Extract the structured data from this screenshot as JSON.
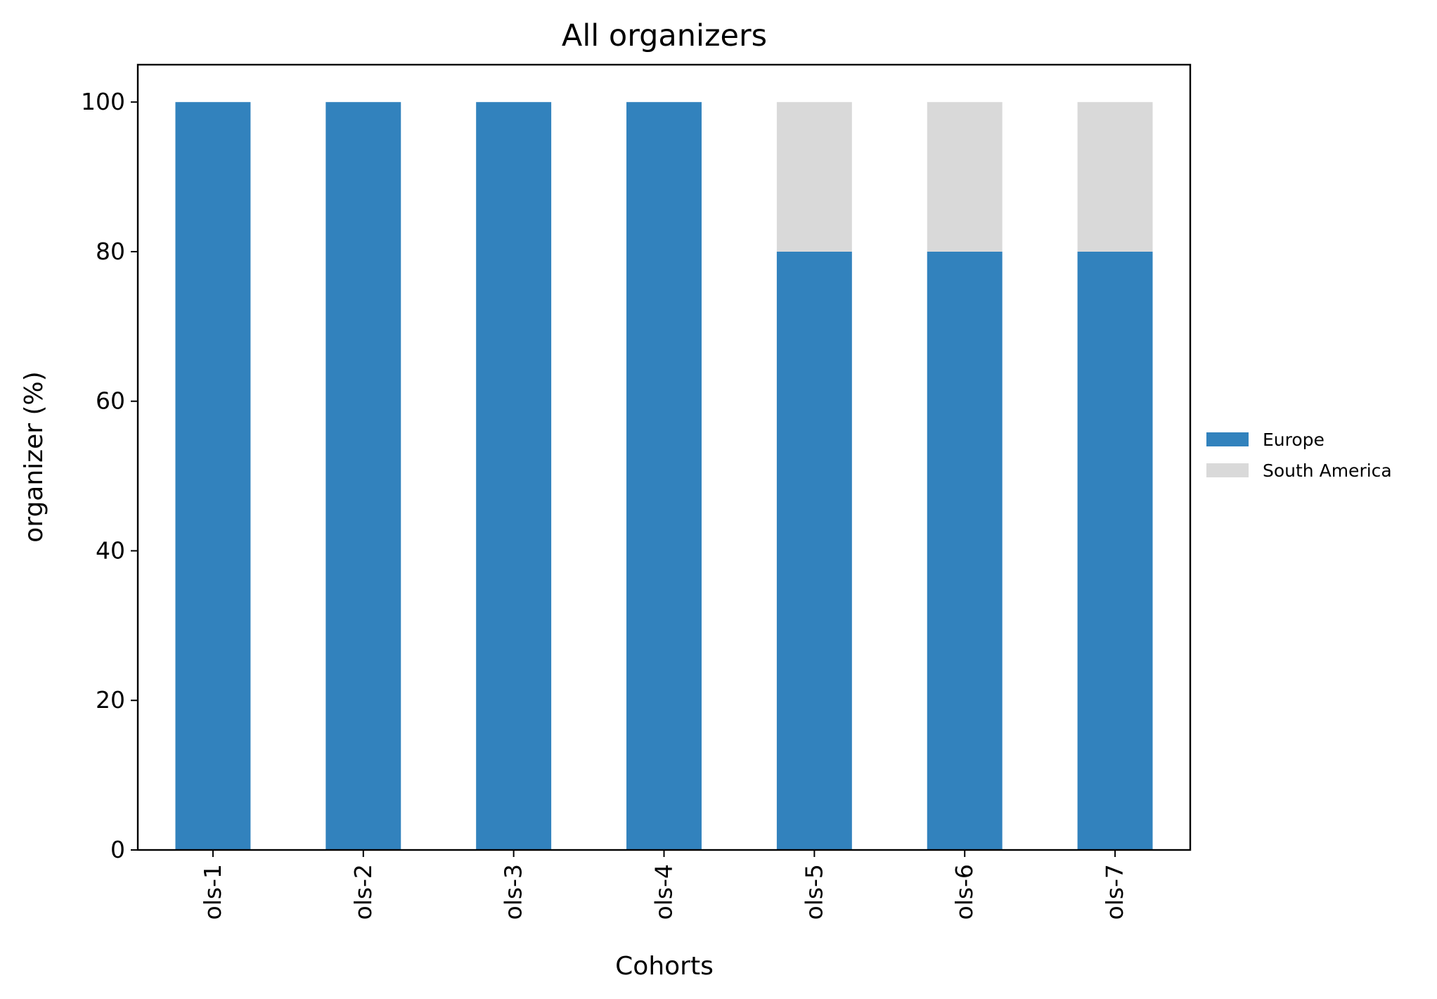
{
  "chart_data": {
    "type": "bar",
    "stacked": true,
    "title": "All organizers",
    "xlabel": "Cohorts",
    "ylabel": "organizer (%)",
    "categories": [
      "ols-1",
      "ols-2",
      "ols-3",
      "ols-4",
      "ols-5",
      "ols-6",
      "ols-7"
    ],
    "series": [
      {
        "name": "Europe",
        "color": "#3282bd",
        "values": [
          100,
          100,
          100,
          100,
          80,
          80,
          80
        ]
      },
      {
        "name": "South America",
        "color": "#d9d9d9",
        "values": [
          0,
          0,
          0,
          0,
          20,
          20,
          20
        ]
      }
    ],
    "ylim": [
      0,
      105
    ],
    "yticks": [
      0,
      20,
      40,
      60,
      80,
      100
    ],
    "grid": false,
    "legend_position": "right, outside plot area",
    "xtick_rotation": "vertical"
  }
}
